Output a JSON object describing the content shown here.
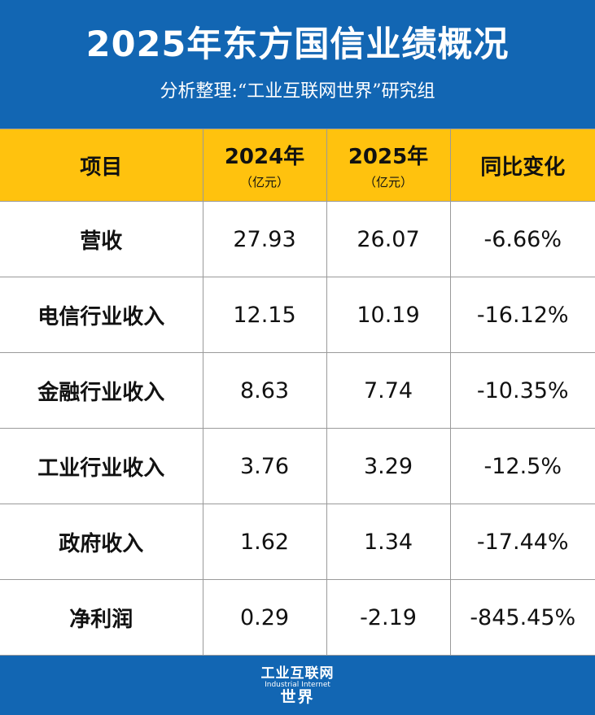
{
  "header": {
    "title": "2025年东方国信业绩概况",
    "subtitle": "分析整理:“工业互联网世界”研究组"
  },
  "table": {
    "columns": [
      {
        "label": "项目",
        "unit": ""
      },
      {
        "label": "2024年",
        "unit": "（亿元）"
      },
      {
        "label": "2025年",
        "unit": "（亿元）"
      },
      {
        "label": "同比变化",
        "unit": ""
      }
    ],
    "rows": [
      {
        "item": "营收",
        "y2024": "27.93",
        "y2025": "26.07",
        "change": "-6.66%"
      },
      {
        "item": "电信行业收入",
        "y2024": "12.15",
        "y2025": "10.19",
        "change": "-16.12%"
      },
      {
        "item": "金融行业收入",
        "y2024": "8.63",
        "y2025": "7.74",
        "change": "-10.35%"
      },
      {
        "item": "工业行业收入",
        "y2024": "3.76",
        "y2025": "3.29",
        "change": "-12.5%"
      },
      {
        "item": "政府收入",
        "y2024": "1.62",
        "y2025": "1.34",
        "change": "-17.44%"
      },
      {
        "item": "净利润",
        "y2024": "0.29",
        "y2025": "-2.19",
        "change": "-845.45%"
      }
    ]
  },
  "footer": {
    "logo_line1": "工业互联网",
    "logo_line2": "Industrial Internet",
    "logo_line3": "世界"
  },
  "colors": {
    "brand_blue": "#1266b3",
    "header_yellow": "#ffc20e"
  }
}
